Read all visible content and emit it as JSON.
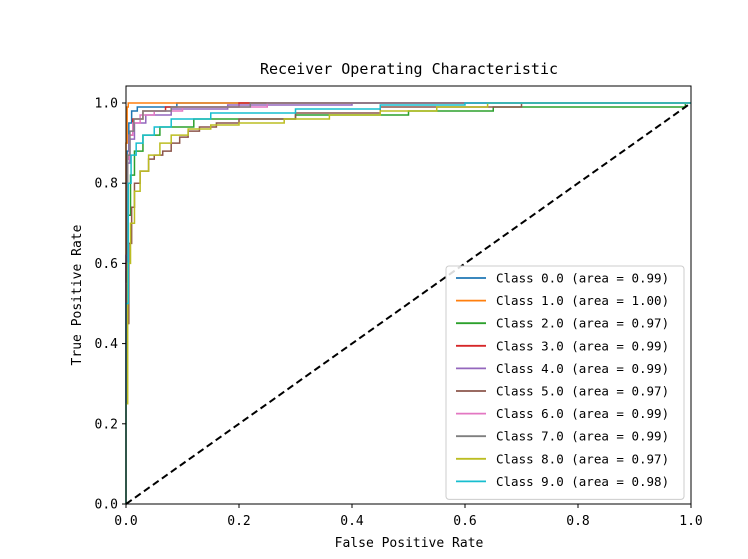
{
  "chart_data": {
    "type": "line",
    "title": "Receiver Operating Characteristic",
    "xlabel": "False Positive Rate",
    "ylabel": "True Positive Rate",
    "xlim": [
      0.0,
      1.0
    ],
    "ylim": [
      0.0,
      1.0
    ],
    "x_ticks": [
      "0.0",
      "0.2",
      "0.4",
      "0.6",
      "0.8",
      "1.0"
    ],
    "y_ticks": [
      "0.0",
      "0.2",
      "0.4",
      "0.6",
      "0.8",
      "1.0"
    ],
    "grid": false,
    "legend_position": "lower-right",
    "series": [
      {
        "name": "Class 0.0 (area = 0.99)",
        "color": "#1f77b4",
        "points": [
          [
            0,
            0
          ],
          [
            0,
            0.52
          ],
          [
            0.002,
            0.52
          ],
          [
            0.002,
            0.88
          ],
          [
            0.005,
            0.88
          ],
          [
            0.005,
            0.95
          ],
          [
            0.01,
            0.95
          ],
          [
            0.01,
            0.98
          ],
          [
            0.02,
            0.98
          ],
          [
            0.02,
            0.99
          ],
          [
            0.09,
            0.99
          ],
          [
            0.09,
            1.0
          ],
          [
            1,
            1
          ]
        ]
      },
      {
        "name": "Class 1.0 (area = 1.00)",
        "color": "#ff7f0e",
        "points": [
          [
            0,
            0
          ],
          [
            0,
            0.9
          ],
          [
            0.002,
            0.9
          ],
          [
            0.002,
            0.99
          ],
          [
            0.004,
            0.99
          ],
          [
            0.004,
            1.0
          ],
          [
            1,
            1
          ]
        ]
      },
      {
        "name": "Class 2.0 (area = 0.97)",
        "color": "#2ca02c",
        "points": [
          [
            0,
            0
          ],
          [
            0,
            0.45
          ],
          [
            0.004,
            0.45
          ],
          [
            0.004,
            0.72
          ],
          [
            0.008,
            0.72
          ],
          [
            0.008,
            0.82
          ],
          [
            0.015,
            0.82
          ],
          [
            0.015,
            0.88
          ],
          [
            0.03,
            0.88
          ],
          [
            0.03,
            0.92
          ],
          [
            0.06,
            0.92
          ],
          [
            0.06,
            0.94
          ],
          [
            0.12,
            0.94
          ],
          [
            0.12,
            0.96
          ],
          [
            0.3,
            0.96
          ],
          [
            0.3,
            0.97
          ],
          [
            0.5,
            0.97
          ],
          [
            0.5,
            0.98
          ],
          [
            0.65,
            0.98
          ],
          [
            0.65,
            0.99
          ],
          [
            0.99,
            0.99
          ],
          [
            0.99,
            1.0
          ],
          [
            1,
            1
          ]
        ]
      },
      {
        "name": "Class 3.0 (area = 0.99)",
        "color": "#d62728",
        "points": [
          [
            0,
            0
          ],
          [
            0,
            0.6
          ],
          [
            0.003,
            0.6
          ],
          [
            0.003,
            0.86
          ],
          [
            0.006,
            0.86
          ],
          [
            0.006,
            0.92
          ],
          [
            0.012,
            0.92
          ],
          [
            0.012,
            0.96
          ],
          [
            0.03,
            0.96
          ],
          [
            0.03,
            0.98
          ],
          [
            0.07,
            0.98
          ],
          [
            0.07,
            0.99
          ],
          [
            0.2,
            0.99
          ],
          [
            0.2,
            1.0
          ],
          [
            1,
            1
          ]
        ]
      },
      {
        "name": "Class 4.0 (area = 0.99)",
        "color": "#9467bd",
        "points": [
          [
            0,
            0
          ],
          [
            0,
            0.62
          ],
          [
            0.003,
            0.62
          ],
          [
            0.003,
            0.85
          ],
          [
            0.007,
            0.85
          ],
          [
            0.007,
            0.91
          ],
          [
            0.015,
            0.91
          ],
          [
            0.015,
            0.95
          ],
          [
            0.035,
            0.95
          ],
          [
            0.035,
            0.97
          ],
          [
            0.08,
            0.97
          ],
          [
            0.08,
            0.985
          ],
          [
            0.18,
            0.985
          ],
          [
            0.18,
            0.995
          ],
          [
            0.4,
            0.995
          ],
          [
            0.4,
            1.0
          ],
          [
            1,
            1
          ]
        ]
      },
      {
        "name": "Class 5.0 (area = 0.97)",
        "color": "#8c564b",
        "points": [
          [
            0,
            0
          ],
          [
            0,
            0.45
          ],
          [
            0.005,
            0.45
          ],
          [
            0.005,
            0.65
          ],
          [
            0.01,
            0.65
          ],
          [
            0.01,
            0.74
          ],
          [
            0.015,
            0.74
          ],
          [
            0.015,
            0.8
          ],
          [
            0.025,
            0.8
          ],
          [
            0.025,
            0.83
          ],
          [
            0.04,
            0.83
          ],
          [
            0.04,
            0.86
          ],
          [
            0.05,
            0.86
          ],
          [
            0.05,
            0.87
          ],
          [
            0.065,
            0.87
          ],
          [
            0.065,
            0.88
          ],
          [
            0.08,
            0.88
          ],
          [
            0.08,
            0.9
          ],
          [
            0.095,
            0.9
          ],
          [
            0.095,
            0.915
          ],
          [
            0.11,
            0.915
          ],
          [
            0.11,
            0.93
          ],
          [
            0.13,
            0.93
          ],
          [
            0.13,
            0.94
          ],
          [
            0.16,
            0.94
          ],
          [
            0.16,
            0.95
          ],
          [
            0.2,
            0.95
          ],
          [
            0.2,
            0.96
          ],
          [
            0.3,
            0.96
          ],
          [
            0.3,
            0.975
          ],
          [
            0.45,
            0.975
          ],
          [
            0.45,
            0.99
          ],
          [
            0.7,
            0.99
          ],
          [
            0.7,
            1.0
          ],
          [
            1,
            1
          ]
        ]
      },
      {
        "name": "Class 6.0 (area = 0.99)",
        "color": "#e377c2",
        "points": [
          [
            0,
            0
          ],
          [
            0,
            0.55
          ],
          [
            0.003,
            0.55
          ],
          [
            0.003,
            0.86
          ],
          [
            0.006,
            0.86
          ],
          [
            0.006,
            0.92
          ],
          [
            0.012,
            0.92
          ],
          [
            0.012,
            0.95
          ],
          [
            0.025,
            0.95
          ],
          [
            0.025,
            0.97
          ],
          [
            0.05,
            0.97
          ],
          [
            0.05,
            0.98
          ],
          [
            0.1,
            0.98
          ],
          [
            0.1,
            0.99
          ],
          [
            0.25,
            0.99
          ],
          [
            0.25,
            1.0
          ],
          [
            1,
            1
          ]
        ]
      },
      {
        "name": "Class 7.0 (area = 0.99)",
        "color": "#7f7f7f",
        "points": [
          [
            0,
            0
          ],
          [
            0,
            0.58
          ],
          [
            0.003,
            0.58
          ],
          [
            0.003,
            0.87
          ],
          [
            0.007,
            0.87
          ],
          [
            0.007,
            0.93
          ],
          [
            0.014,
            0.93
          ],
          [
            0.014,
            0.96
          ],
          [
            0.03,
            0.96
          ],
          [
            0.03,
            0.98
          ],
          [
            0.08,
            0.98
          ],
          [
            0.08,
            0.99
          ],
          [
            0.22,
            0.99
          ],
          [
            0.22,
            1.0
          ],
          [
            1,
            1
          ]
        ]
      },
      {
        "name": "Class 8.0 (area = 0.97)",
        "color": "#bcbd22",
        "points": [
          [
            0,
            0
          ],
          [
            0,
            0.25
          ],
          [
            0.003,
            0.25
          ],
          [
            0.003,
            0.6
          ],
          [
            0.008,
            0.6
          ],
          [
            0.008,
            0.7
          ],
          [
            0.015,
            0.7
          ],
          [
            0.015,
            0.78
          ],
          [
            0.025,
            0.78
          ],
          [
            0.025,
            0.83
          ],
          [
            0.04,
            0.83
          ],
          [
            0.04,
            0.87
          ],
          [
            0.06,
            0.87
          ],
          [
            0.06,
            0.9
          ],
          [
            0.08,
            0.9
          ],
          [
            0.08,
            0.92
          ],
          [
            0.11,
            0.92
          ],
          [
            0.11,
            0.935
          ],
          [
            0.15,
            0.935
          ],
          [
            0.15,
            0.945
          ],
          [
            0.2,
            0.945
          ],
          [
            0.2,
            0.95
          ],
          [
            0.28,
            0.95
          ],
          [
            0.28,
            0.96
          ],
          [
            0.36,
            0.96
          ],
          [
            0.36,
            0.97
          ],
          [
            0.45,
            0.97
          ],
          [
            0.45,
            0.98
          ],
          [
            0.55,
            0.98
          ],
          [
            0.55,
            0.99
          ],
          [
            0.64,
            0.99
          ],
          [
            0.64,
            1.0
          ],
          [
            1,
            1
          ]
        ]
      },
      {
        "name": "Class 9.0 (area = 0.98)",
        "color": "#17becf",
        "points": [
          [
            0,
            0
          ],
          [
            0,
            0.5
          ],
          [
            0.004,
            0.5
          ],
          [
            0.004,
            0.8
          ],
          [
            0.009,
            0.8
          ],
          [
            0.009,
            0.87
          ],
          [
            0.018,
            0.87
          ],
          [
            0.018,
            0.9
          ],
          [
            0.03,
            0.9
          ],
          [
            0.03,
            0.92
          ],
          [
            0.05,
            0.92
          ],
          [
            0.05,
            0.94
          ],
          [
            0.08,
            0.94
          ],
          [
            0.08,
            0.96
          ],
          [
            0.15,
            0.96
          ],
          [
            0.15,
            0.975
          ],
          [
            0.3,
            0.975
          ],
          [
            0.3,
            0.985
          ],
          [
            0.45,
            0.985
          ],
          [
            0.45,
            0.995
          ],
          [
            0.6,
            0.995
          ],
          [
            0.6,
            1.0
          ],
          [
            1,
            1
          ]
        ]
      }
    ],
    "reference_line": {
      "points": [
        [
          0,
          0
        ],
        [
          1,
          1
        ]
      ],
      "color": "#000000",
      "style": "dashed"
    }
  }
}
